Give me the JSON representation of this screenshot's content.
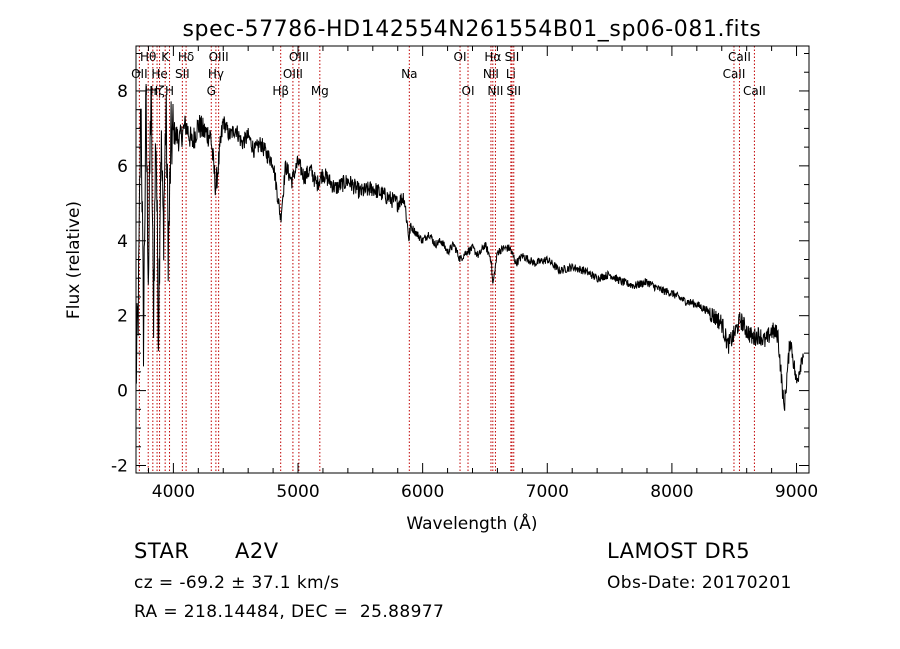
{
  "chart_data": {
    "type": "line",
    "title": "spec-57786-HD142554N261554B01_sp06-081.fits",
    "xlabel": "Wavelength (Å)",
    "ylabel": "Flux (relative)",
    "xlim": [
      3700,
      9100
    ],
    "ylim": [
      -2.2,
      9.2
    ],
    "x_ticks": [
      4000,
      5000,
      6000,
      7000,
      8000,
      9000
    ],
    "y_ticks": [
      -2,
      0,
      2,
      4,
      6,
      8
    ],
    "grid": false,
    "line_color": "#000000",
    "marker_color": "#c00000",
    "series": [
      {
        "x": [
          3700,
          3720,
          3740,
          3760,
          3780,
          3800,
          3820,
          3840,
          3860,
          3880,
          3900,
          3920,
          3940,
          3960,
          3980,
          4000,
          4050,
          4100,
          4150,
          4200,
          4250,
          4300,
          4340,
          4400,
          4450,
          4500,
          4550,
          4600,
          4650,
          4700,
          4750,
          4800,
          4861,
          4900,
          4950,
          5000,
          5050,
          5100,
          5150,
          5200,
          5300,
          5400,
          5500,
          5600,
          5700,
          5800,
          5850,
          5893,
          5900,
          5950,
          6000,
          6050,
          6100,
          6150,
          6200,
          6250,
          6300,
          6350,
          6400,
          6450,
          6500,
          6550,
          6563,
          6600,
          6650,
          6700,
          6750,
          6800,
          6900,
          7000,
          7100,
          7200,
          7300,
          7400,
          7500,
          7600,
          7700,
          7800,
          7900,
          8000,
          8100,
          8200,
          8300,
          8400,
          8450,
          8500,
          8550,
          8600,
          8650,
          8700,
          8750,
          8800,
          8850,
          8900,
          8950,
          9000,
          9050
        ],
        "y": [
          0.3,
          2.4,
          8.0,
          1.5,
          7.6,
          3.0,
          8.2,
          2.0,
          7.2,
          1.6,
          6.8,
          4.2,
          7.5,
          3.6,
          6.6,
          6.9,
          6.7,
          7.1,
          6.6,
          7.1,
          6.9,
          6.8,
          5.4,
          7.2,
          6.8,
          7.0,
          6.6,
          6.8,
          6.4,
          6.6,
          6.3,
          6.1,
          4.6,
          6.0,
          5.6,
          6.1,
          5.7,
          5.9,
          5.5,
          5.8,
          5.4,
          5.6,
          5.3,
          5.4,
          5.2,
          5.0,
          5.2,
          4.0,
          4.4,
          4.2,
          4.0,
          4.2,
          3.9,
          4.0,
          3.7,
          3.9,
          3.5,
          3.7,
          3.8,
          3.6,
          3.9,
          3.5,
          2.8,
          3.7,
          3.8,
          3.8,
          3.4,
          3.6,
          3.4,
          3.5,
          3.2,
          3.3,
          3.2,
          3.0,
          3.1,
          2.9,
          2.8,
          2.9,
          2.7,
          2.6,
          2.4,
          2.3,
          2.1,
          1.8,
          1.2,
          1.5,
          1.9,
          1.6,
          1.4,
          1.5,
          1.3,
          1.6,
          1.5,
          -0.5,
          1.4,
          0.2,
          1.0
        ]
      }
    ],
    "line_markers": [
      {
        "w": 3727,
        "label": "OII",
        "row": 1
      },
      {
        "w": 3798,
        "label": "Hθ",
        "row": 0
      },
      {
        "w": 3835,
        "label": "Hη",
        "row": 2
      },
      {
        "w": 3869,
        "label": "Hζ",
        "row": 2
      },
      {
        "w": 3889,
        "label": "He",
        "row": 1
      },
      {
        "w": 3934,
        "label": "K",
        "row": 0
      },
      {
        "w": 3969,
        "label": "H",
        "row": 2
      },
      {
        "w": 4072,
        "label": "SII",
        "row": 1
      },
      {
        "w": 4102,
        "label": "Hδ",
        "row": 0
      },
      {
        "w": 4304,
        "label": "G",
        "row": 2
      },
      {
        "w": 4341,
        "label": "Hγ",
        "row": 1
      },
      {
        "w": 4363,
        "label": "OIII",
        "row": 0
      },
      {
        "w": 4861,
        "label": "Hβ",
        "row": 2
      },
      {
        "w": 4959,
        "label": "OIII",
        "row": 1
      },
      {
        "w": 5007,
        "label": "OIII",
        "row": 0
      },
      {
        "w": 5175,
        "label": "Mg",
        "row": 2
      },
      {
        "w": 5893,
        "label": "Na",
        "row": 1
      },
      {
        "w": 6300,
        "label": "OI",
        "row": 0
      },
      {
        "w": 6364,
        "label": "OI",
        "row": 2
      },
      {
        "w": 6548,
        "label": "NII",
        "row": 1
      },
      {
        "w": 6563,
        "label": "Hα",
        "row": 0
      },
      {
        "w": 6584,
        "label": "NII",
        "row": 2
      },
      {
        "w": 6708,
        "label": "Li",
        "row": 1
      },
      {
        "w": 6717,
        "label": "SII",
        "row": 0
      },
      {
        "w": 6731,
        "label": "SII",
        "row": 2
      },
      {
        "w": 8498,
        "label": "CaII",
        "row": 1
      },
      {
        "w": 8542,
        "label": "CaII",
        "row": 0
      },
      {
        "w": 8662,
        "label": "CaII",
        "row": 2
      }
    ]
  },
  "info": {
    "object_class": "STAR",
    "subclass": "A2V",
    "survey": "LAMOST DR5",
    "redshift_line": "cz = -69.2 ± 37.1 km/s",
    "obs_date_line": "Obs-Date: 20170201",
    "coords_line": "RA = 218.14484, DEC =  25.88977"
  }
}
